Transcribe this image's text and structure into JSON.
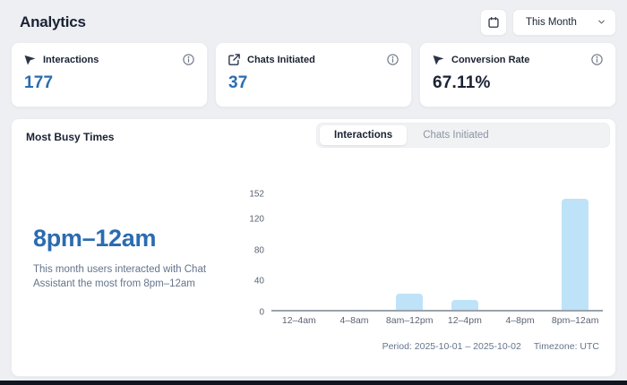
{
  "header": {
    "title": "Analytics",
    "period_select": {
      "value": "This Month"
    }
  },
  "stat_cards": [
    {
      "label": "Interactions",
      "value": "177",
      "icon": "cursor-click-icon"
    },
    {
      "label": "Chats Initiated",
      "value": "37",
      "icon": "external-link-icon"
    },
    {
      "label": "Conversion Rate",
      "value": "67.11%",
      "icon": "cursor-click-icon"
    }
  ],
  "busy_times": {
    "title": "Most Busy Times",
    "tabs": [
      {
        "label": "Interactions",
        "active": true
      },
      {
        "label": "Chats Initiated",
        "active": false
      }
    ],
    "highlight": "8pm–12am",
    "description": "This month users interacted with Chat Assistant the most from 8pm–12am",
    "footer": {
      "period_text": "Period: 2025-10-01 – 2025-10-02",
      "timezone_text": "Timezone: UTC"
    }
  },
  "chart_data": {
    "type": "bar",
    "categories": [
      "12–4am",
      "4–8am",
      "8am–12pm",
      "12–4pm",
      "4–8pm",
      "8pm–12am"
    ],
    "values": [
      0,
      0,
      21,
      13,
      0,
      143
    ],
    "title": "Most Busy Times (Interactions)",
    "xlabel": "",
    "ylabel": "",
    "yticks": [
      0,
      40,
      80,
      120,
      152
    ],
    "ylim": [
      0,
      152
    ],
    "bar_color": "#bee3f8",
    "grid": false,
    "legend": false
  },
  "colors": {
    "accent_blue": "#2b6cb0",
    "bar_fill": "#bee3f8",
    "dark_text": "#1a2233",
    "muted_text": "#64748b",
    "page_bg": "#edeff2"
  }
}
